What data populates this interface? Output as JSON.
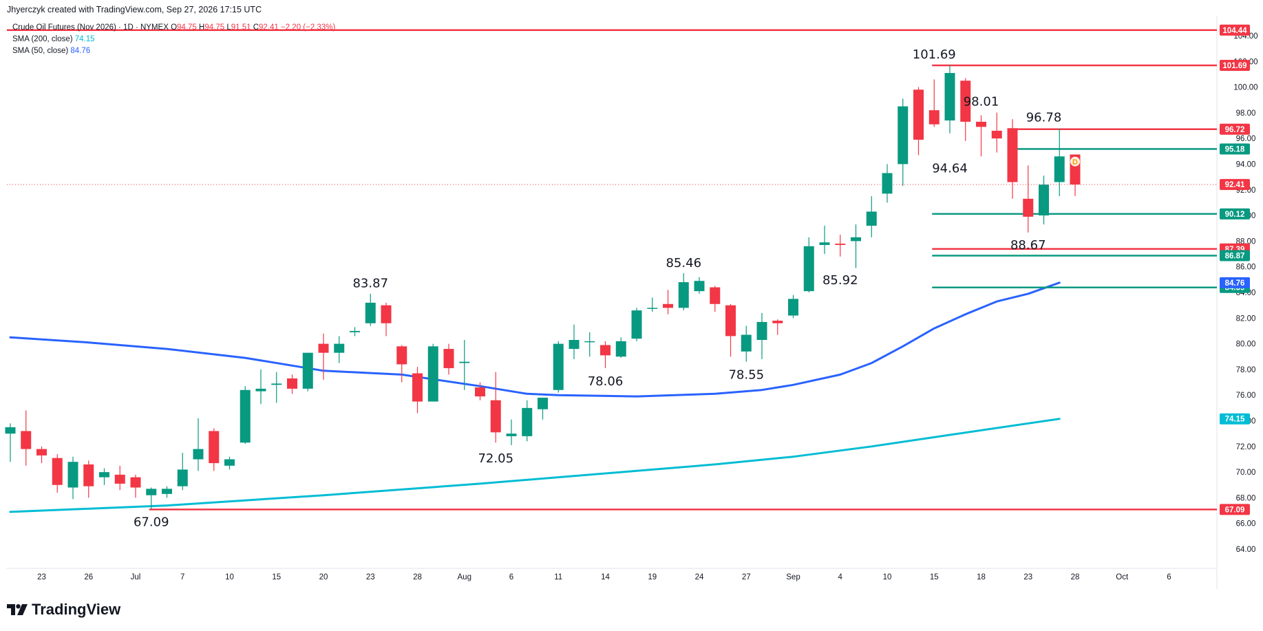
{
  "header": {
    "attribution": "Jhyerczyk created with TradingView.com, Sep 27, 2026 17:15 UTC",
    "symbol": "Crude Oil Futures (Nov 2026) · 1D · NYMEX",
    "o_label": "O",
    "o_value": "94.75",
    "h_label": "H",
    "h_value": "94.75",
    "l_label": "L",
    "l_value": "91.51",
    "c_label": "C",
    "c_value": "92.41",
    "change": "−2.20 (−2.33%)"
  },
  "indicators": [
    {
      "label": "SMA (200, close)",
      "value": "74.15",
      "color": "#00bcd4"
    },
    {
      "label": "SMA (50, close)",
      "value": "84.76",
      "color": "#2962ff"
    }
  ],
  "brand": {
    "name": "TradingView"
  },
  "chart_data": {
    "type": "candlestick",
    "colors": {
      "up": "#089981",
      "down": "#f23645",
      "sma50": "#2962ff",
      "sma200": "#00bcd4",
      "support_red": "#f23645",
      "support_green": "#089981"
    },
    "ylim": [
      62.5,
      105.5
    ],
    "y_ticks": [
      "64.00",
      "66.00",
      "68.00",
      "70.00",
      "72.00",
      "74.00",
      "76.00",
      "78.00",
      "80.00",
      "82.00",
      "84.00",
      "86.00",
      "88.00",
      "90.00",
      "92.00",
      "94.00",
      "96.00",
      "98.00",
      "100.00",
      "102.00",
      "104.00"
    ],
    "x_ticks": [
      {
        "i": 2,
        "label": "23"
      },
      {
        "i": 5,
        "label": "26"
      },
      {
        "i": 8,
        "label": "Jul"
      },
      {
        "i": 11,
        "label": "7"
      },
      {
        "i": 14,
        "label": "10"
      },
      {
        "i": 17,
        "label": "15"
      },
      {
        "i": 20,
        "label": "20"
      },
      {
        "i": 23,
        "label": "23"
      },
      {
        "i": 26,
        "label": "28"
      },
      {
        "i": 29,
        "label": "Aug"
      },
      {
        "i": 32,
        "label": "6"
      },
      {
        "i": 35,
        "label": "11"
      },
      {
        "i": 38,
        "label": "14"
      },
      {
        "i": 41,
        "label": "19"
      },
      {
        "i": 44,
        "label": "24"
      },
      {
        "i": 47,
        "label": "27"
      },
      {
        "i": 50,
        "label": "Sep"
      },
      {
        "i": 53,
        "label": "4"
      },
      {
        "i": 56,
        "label": "10"
      },
      {
        "i": 59,
        "label": "15"
      },
      {
        "i": 62,
        "label": "18"
      },
      {
        "i": 65,
        "label": "23"
      },
      {
        "i": 68,
        "label": "28"
      },
      {
        "i": 71,
        "label": "Oct"
      },
      {
        "i": 74,
        "label": "6"
      }
    ],
    "candles": [
      {
        "o": 73.0,
        "h": 73.8,
        "l": 70.8,
        "c": 73.5
      },
      {
        "o": 73.2,
        "h": 74.8,
        "l": 70.5,
        "c": 71.8
      },
      {
        "o": 71.8,
        "h": 72.0,
        "l": 70.7,
        "c": 71.3
      },
      {
        "o": 71.1,
        "h": 71.4,
        "l": 68.4,
        "c": 69.0
      },
      {
        "o": 68.8,
        "h": 71.2,
        "l": 67.9,
        "c": 70.8
      },
      {
        "o": 70.6,
        "h": 70.9,
        "l": 68.0,
        "c": 68.9
      },
      {
        "o": 69.6,
        "h": 70.3,
        "l": 69.0,
        "c": 70.0
      },
      {
        "o": 69.8,
        "h": 70.5,
        "l": 68.6,
        "c": 69.1
      },
      {
        "o": 69.6,
        "h": 69.8,
        "l": 68.0,
        "c": 68.8
      },
      {
        "o": 68.2,
        "h": 68.8,
        "l": 67.1,
        "c": 68.7
      },
      {
        "o": 68.3,
        "h": 68.9,
        "l": 68.0,
        "c": 68.7
      },
      {
        "o": 68.9,
        "h": 71.5,
        "l": 68.6,
        "c": 70.2
      },
      {
        "o": 71.0,
        "h": 74.2,
        "l": 70.1,
        "c": 71.8
      },
      {
        "o": 73.2,
        "h": 73.4,
        "l": 70.1,
        "c": 70.7
      },
      {
        "o": 70.5,
        "h": 71.2,
        "l": 70.2,
        "c": 71.0
      },
      {
        "o": 72.3,
        "h": 76.7,
        "l": 72.2,
        "c": 76.4
      },
      {
        "o": 76.3,
        "h": 78.0,
        "l": 75.3,
        "c": 76.5
      },
      {
        "o": 76.8,
        "h": 77.8,
        "l": 75.4,
        "c": 76.9
      },
      {
        "o": 77.3,
        "h": 77.6,
        "l": 76.1,
        "c": 76.5
      },
      {
        "o": 76.5,
        "h": 79.3,
        "l": 76.3,
        "c": 79.3
      },
      {
        "o": 80.0,
        "h": 80.8,
        "l": 77.2,
        "c": 79.3
      },
      {
        "o": 79.3,
        "h": 80.6,
        "l": 78.5,
        "c": 80.0
      },
      {
        "o": 80.9,
        "h": 81.3,
        "l": 80.6,
        "c": 81.0
      },
      {
        "o": 81.6,
        "h": 83.9,
        "l": 81.4,
        "c": 83.2
      },
      {
        "o": 83.0,
        "h": 83.2,
        "l": 80.6,
        "c": 81.6
      },
      {
        "o": 79.8,
        "h": 79.9,
        "l": 77.0,
        "c": 78.4
      },
      {
        "o": 77.7,
        "h": 78.2,
        "l": 74.6,
        "c": 75.5
      },
      {
        "o": 75.5,
        "h": 80.0,
        "l": 75.5,
        "c": 79.8
      },
      {
        "o": 79.6,
        "h": 80.0,
        "l": 77.6,
        "c": 78.1
      },
      {
        "o": 78.5,
        "h": 80.3,
        "l": 76.4,
        "c": 78.6
      },
      {
        "o": 76.6,
        "h": 77.0,
        "l": 75.6,
        "c": 75.9
      },
      {
        "o": 75.6,
        "h": 77.8,
        "l": 72.3,
        "c": 73.1
      },
      {
        "o": 72.8,
        "h": 74.1,
        "l": 72.1,
        "c": 73.0
      },
      {
        "o": 72.8,
        "h": 75.6,
        "l": 72.4,
        "c": 75.0
      },
      {
        "o": 74.9,
        "h": 75.8,
        "l": 74.1,
        "c": 75.8
      },
      {
        "o": 76.4,
        "h": 80.2,
        "l": 76.2,
        "c": 80.0
      },
      {
        "o": 79.6,
        "h": 81.5,
        "l": 78.8,
        "c": 80.3
      },
      {
        "o": 80.2,
        "h": 80.9,
        "l": 79.0,
        "c": 80.2
      },
      {
        "o": 79.9,
        "h": 80.2,
        "l": 78.1,
        "c": 79.1
      },
      {
        "o": 79.0,
        "h": 80.5,
        "l": 78.9,
        "c": 80.2
      },
      {
        "o": 80.4,
        "h": 82.8,
        "l": 80.2,
        "c": 82.6
      },
      {
        "o": 82.8,
        "h": 83.6,
        "l": 82.5,
        "c": 82.8
      },
      {
        "o": 83.1,
        "h": 84.2,
        "l": 82.3,
        "c": 82.8
      },
      {
        "o": 82.8,
        "h": 85.5,
        "l": 82.6,
        "c": 84.8
      },
      {
        "o": 84.1,
        "h": 85.2,
        "l": 83.9,
        "c": 84.9
      },
      {
        "o": 84.4,
        "h": 84.5,
        "l": 82.5,
        "c": 83.1
      },
      {
        "o": 83.0,
        "h": 83.1,
        "l": 79.0,
        "c": 80.6
      },
      {
        "o": 79.4,
        "h": 81.4,
        "l": 78.6,
        "c": 80.7
      },
      {
        "o": 80.3,
        "h": 82.4,
        "l": 78.8,
        "c": 81.7
      },
      {
        "o": 81.8,
        "h": 81.9,
        "l": 80.7,
        "c": 81.6
      },
      {
        "o": 82.2,
        "h": 83.8,
        "l": 82.0,
        "c": 83.5
      },
      {
        "o": 84.1,
        "h": 88.3,
        "l": 84.0,
        "c": 87.6
      },
      {
        "o": 87.7,
        "h": 89.2,
        "l": 87.0,
        "c": 87.9
      },
      {
        "o": 87.8,
        "h": 88.5,
        "l": 86.8,
        "c": 87.7
      },
      {
        "o": 88.0,
        "h": 89.3,
        "l": 85.9,
        "c": 88.3
      },
      {
        "o": 89.2,
        "h": 91.5,
        "l": 88.3,
        "c": 90.3
      },
      {
        "o": 91.7,
        "h": 94.0,
        "l": 91.0,
        "c": 93.3
      },
      {
        "o": 94.0,
        "h": 99.1,
        "l": 92.3,
        "c": 98.5
      },
      {
        "o": 99.8,
        "h": 100.0,
        "l": 94.7,
        "c": 95.9
      },
      {
        "o": 98.2,
        "h": 100.6,
        "l": 96.9,
        "c": 97.1
      },
      {
        "o": 97.4,
        "h": 101.69,
        "l": 96.4,
        "c": 101.1
      },
      {
        "o": 100.5,
        "h": 100.7,
        "l": 95.8,
        "c": 97.3
      },
      {
        "o": 97.3,
        "h": 97.8,
        "l": 94.6,
        "c": 96.9
      },
      {
        "o": 96.6,
        "h": 98.01,
        "l": 94.9,
        "c": 96.0
      },
      {
        "o": 96.8,
        "h": 97.5,
        "l": 91.3,
        "c": 92.6
      },
      {
        "o": 91.3,
        "h": 93.9,
        "l": 88.67,
        "c": 89.9
      },
      {
        "o": 90.0,
        "h": 93.1,
        "l": 89.3,
        "c": 92.4
      },
      {
        "o": 92.6,
        "h": 96.78,
        "l": 91.5,
        "c": 94.6
      },
      {
        "o": 94.75,
        "h": 94.75,
        "l": 91.51,
        "c": 92.41
      }
    ],
    "sma50": [
      {
        "i": 0,
        "v": 80.5
      },
      {
        "i": 5,
        "v": 80.1
      },
      {
        "i": 10,
        "v": 79.6
      },
      {
        "i": 15,
        "v": 78.9
      },
      {
        "i": 20,
        "v": 77.9
      },
      {
        "i": 25,
        "v": 77.6
      },
      {
        "i": 30,
        "v": 76.7
      },
      {
        "i": 33,
        "v": 76.1
      },
      {
        "i": 35,
        "v": 76.0
      },
      {
        "i": 40,
        "v": 75.9
      },
      {
        "i": 45,
        "v": 76.1
      },
      {
        "i": 48,
        "v": 76.4
      },
      {
        "i": 50,
        "v": 76.8
      },
      {
        "i": 53,
        "v": 77.6
      },
      {
        "i": 55,
        "v": 78.5
      },
      {
        "i": 57,
        "v": 79.8
      },
      {
        "i": 59,
        "v": 81.2
      },
      {
        "i": 61,
        "v": 82.3
      },
      {
        "i": 63,
        "v": 83.3
      },
      {
        "i": 65,
        "v": 83.9
      },
      {
        "i": 67,
        "v": 84.76
      }
    ],
    "sma200": [
      {
        "i": 0,
        "v": 66.9
      },
      {
        "i": 10,
        "v": 67.4
      },
      {
        "i": 20,
        "v": 68.2
      },
      {
        "i": 30,
        "v": 69.1
      },
      {
        "i": 40,
        "v": 70.1
      },
      {
        "i": 45,
        "v": 70.6
      },
      {
        "i": 50,
        "v": 71.2
      },
      {
        "i": 55,
        "v": 72.0
      },
      {
        "i": 60,
        "v": 72.9
      },
      {
        "i": 67,
        "v": 74.15
      }
    ],
    "horizontal_levels": [
      {
        "value": 104.44,
        "label": "104.44",
        "color": "#f23645",
        "from_i": -1
      },
      {
        "value": 101.69,
        "label": "101.69",
        "color": "#f23645",
        "from_i": 59
      },
      {
        "value": 96.72,
        "label": "96.72",
        "color": "#f23645",
        "from_i": 64
      },
      {
        "value": 95.18,
        "label": "95.18",
        "color": "#089981",
        "from_i": 64
      },
      {
        "value": 90.12,
        "label": "90.12",
        "color": "#089981",
        "from_i": 59
      },
      {
        "value": 87.39,
        "label": "87.39",
        "color": "#f23645",
        "from_i": 59
      },
      {
        "value": 86.87,
        "label": "86.87",
        "color": "#089981",
        "from_i": 59
      },
      {
        "value": 84.39,
        "label": "84.39",
        "color": "#089981",
        "from_i": 59
      },
      {
        "value": 67.09,
        "label": "67.09",
        "color": "#f23645",
        "from_i": 9
      }
    ],
    "price_badges": [
      {
        "value": 92.41,
        "label": "92.41",
        "color": "#f23645"
      },
      {
        "value": 84.76,
        "label": "84.76",
        "color": "#2962ff"
      },
      {
        "value": 74.15,
        "label": "74.15",
        "color": "#00bcd4"
      }
    ],
    "current_price": 92.41,
    "annotations": [
      {
        "text": "101.69",
        "i": 59,
        "v": 101.69,
        "pos": "above"
      },
      {
        "text": "98.01",
        "i": 62,
        "v": 98.01,
        "pos": "above"
      },
      {
        "text": "96.78",
        "i": 66,
        "v": 96.78,
        "pos": "above"
      },
      {
        "text": "94.64",
        "i": 60,
        "v": 94.64,
        "pos": "below"
      },
      {
        "text": "88.67",
        "i": 65,
        "v": 88.67,
        "pos": "below"
      },
      {
        "text": "85.92",
        "i": 53,
        "v": 85.92,
        "pos": "below"
      },
      {
        "text": "85.46",
        "i": 43,
        "v": 85.46,
        "pos": "above"
      },
      {
        "text": "83.87",
        "i": 23,
        "v": 83.87,
        "pos": "above"
      },
      {
        "text": "78.06",
        "i": 38,
        "v": 78.06,
        "pos": "below"
      },
      {
        "text": "78.55",
        "i": 47,
        "v": 78.55,
        "pos": "below"
      },
      {
        "text": "72.05",
        "i": 31,
        "v": 72.05,
        "pos": "below"
      },
      {
        "text": "67.09",
        "i": 9,
        "v": 67.09,
        "pos": "below"
      }
    ],
    "dividend_marker": {
      "text": "D",
      "i": 68,
      "v": 94.2,
      "color": "#ff9800"
    }
  }
}
